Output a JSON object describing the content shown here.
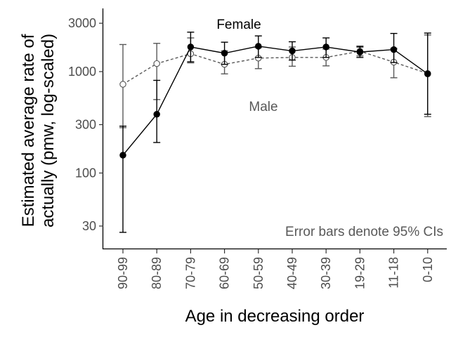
{
  "chart_data": {
    "type": "line",
    "title": "",
    "xlabel": "Age in decreasing order",
    "ylabel": [
      "Estimated average rate of",
      "actually (pmw, log-scaled)"
    ],
    "y_scale": "log",
    "ylim": [
      18,
      4200
    ],
    "y_ticks": [
      30,
      100,
      300,
      1000,
      3000
    ],
    "y_tick_labels": [
      "30",
      "100",
      "300",
      "1000",
      "3000"
    ],
    "categories": [
      "90-99",
      "80-89",
      "70-79",
      "60-69",
      "50-59",
      "40-49",
      "30-39",
      "19-29",
      "11-18",
      "0-10"
    ],
    "series": [
      {
        "name": "Female",
        "style": "solid",
        "marker": "filled-circle",
        "color": "#000000",
        "values": [
          150,
          380,
          1750,
          1520,
          1780,
          1600,
          1750,
          1560,
          1650,
          950
        ],
        "ci_low": [
          26,
          200,
          1250,
          1180,
          1380,
          1300,
          1380,
          1380,
          1230,
          380
        ],
        "ci_high": [
          290,
          820,
          2450,
          1950,
          2250,
          1970,
          2150,
          1780,
          2380,
          2400
        ]
      },
      {
        "name": "Male",
        "style": "dashed",
        "marker": "open-circle",
        "color": "#595959",
        "values": [
          750,
          1200,
          1500,
          1180,
          1360,
          1380,
          1380,
          1590,
          1240,
          960
        ],
        "ci_low": [
          280,
          530,
          1220,
          950,
          1070,
          1130,
          1140,
          1430,
          870,
          360
        ],
        "ci_high": [
          1850,
          1900,
          2150,
          1600,
          1720,
          1750,
          1670,
          1740,
          1700,
          2300
        ]
      }
    ],
    "annotations": [
      {
        "text": "Female",
        "color": "#000000"
      },
      {
        "text": "Male",
        "color": "#595959"
      },
      {
        "text": "Error bars denote 95% CIs",
        "color": "#595959"
      }
    ],
    "grid": false,
    "legend": "none"
  }
}
